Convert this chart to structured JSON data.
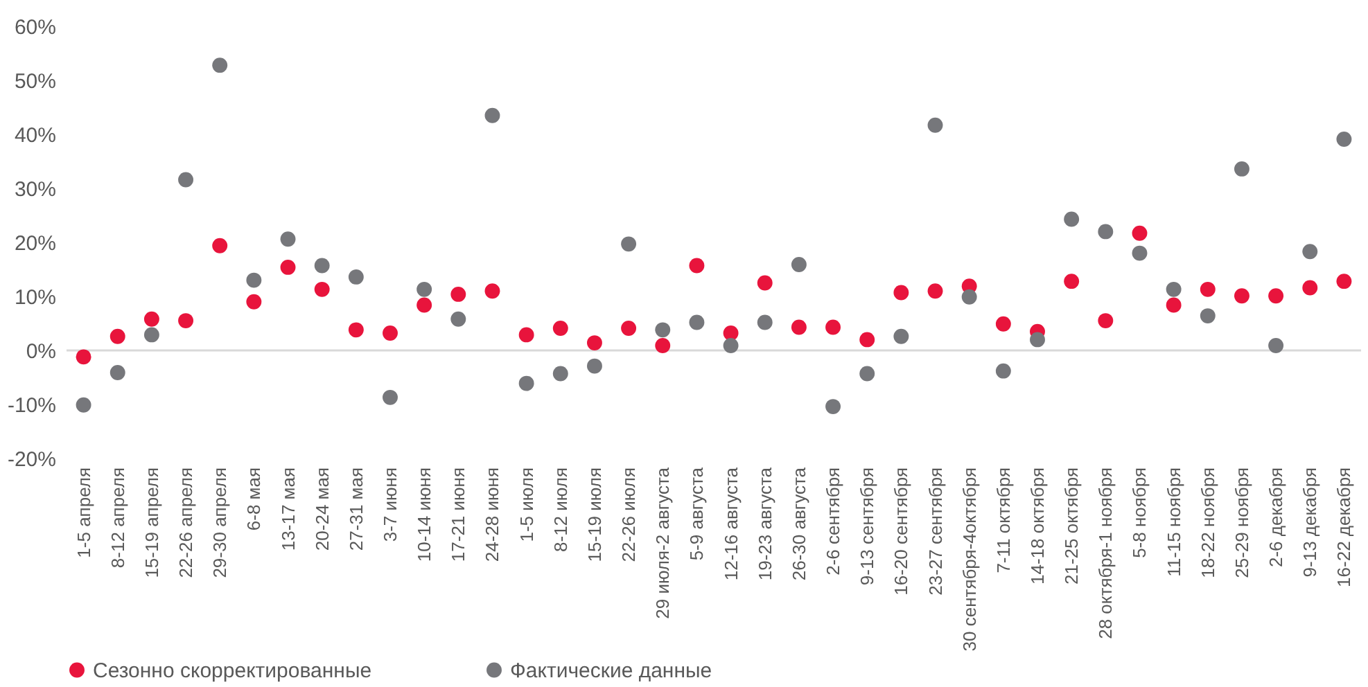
{
  "chart_data": {
    "type": "scatter",
    "categories": [
      "1-5 апреля",
      "8-12 апреля",
      "15-19 апреля",
      "22-26 апреля",
      "29-30 апреля",
      "6-8 мая",
      "13-17 мая",
      "20-24 мая",
      "27-31 мая",
      "3-7 июня",
      "10-14 июня",
      "17-21 июня",
      "24-28 июня",
      "1-5 июля",
      "8-12 июля",
      "15-19 июля",
      "22-26 июля",
      "29 июля-2 августа",
      "5-9 августа",
      "12-16 августа",
      "19-23 августа",
      "26-30 августа",
      "2-6 сентября",
      "9-13 сентября",
      "16-20 сентября",
      "23-27 сентября",
      "30 сентября-4октября",
      "7-11 октября",
      "14-18 октября",
      "21-25 октября",
      "28 октября-1 ноября",
      "5-8 ноября",
      "11-15 ноября",
      "18-22 ноября",
      "25-29 ноября",
      "2-6 декабря",
      "9-13 декабря",
      "16-22 декабря"
    ],
    "series": [
      {
        "name": "Сезонно скорректированные",
        "color": "#e8143c",
        "values": [
          -1.2,
          2.6,
          5.8,
          5.5,
          19.4,
          9.0,
          15.4,
          11.3,
          3.8,
          3.2,
          8.4,
          10.4,
          11.0,
          2.9,
          4.1,
          1.4,
          4.1,
          0.9,
          15.7,
          3.2,
          12.5,
          4.3,
          4.3,
          2.0,
          10.7,
          11.0,
          11.9,
          4.9,
          3.5,
          12.8,
          5.5,
          21.7,
          8.4,
          11.3,
          10.1,
          10.1,
          11.6,
          12.8
        ]
      },
      {
        "name": "Фактические данные",
        "color": "#76777b",
        "values": [
          -10.1,
          -4.1,
          2.9,
          31.6,
          52.8,
          13.0,
          20.6,
          15.7,
          13.6,
          -8.7,
          11.3,
          5.8,
          43.5,
          -6.1,
          -4.3,
          -2.9,
          19.7,
          3.8,
          5.2,
          0.9,
          5.2,
          15.9,
          -10.4,
          -4.3,
          2.6,
          41.7,
          9.9,
          -3.8,
          2.0,
          24.3,
          22.0,
          18.0,
          11.3,
          6.4,
          33.6,
          0.9,
          18.3,
          39.1
        ]
      }
    ],
    "ylim": [
      -20,
      60
    ],
    "yticks": [
      {
        "value": -20,
        "label": "-20%"
      },
      {
        "value": -10,
        "label": "-10%"
      },
      {
        "value": 0,
        "label": "0%"
      },
      {
        "value": 10,
        "label": "10%"
      },
      {
        "value": 20,
        "label": "20%"
      },
      {
        "value": 30,
        "label": "30%"
      },
      {
        "value": 40,
        "label": "40%"
      },
      {
        "value": 50,
        "label": "50%"
      },
      {
        "value": 60,
        "label": "60%"
      }
    ],
    "ref_lines": [
      {
        "axis": "y",
        "value": 0,
        "color": "#d9d9d9"
      }
    ],
    "marker": "circle",
    "legend": "bottom left",
    "grid": false
  }
}
